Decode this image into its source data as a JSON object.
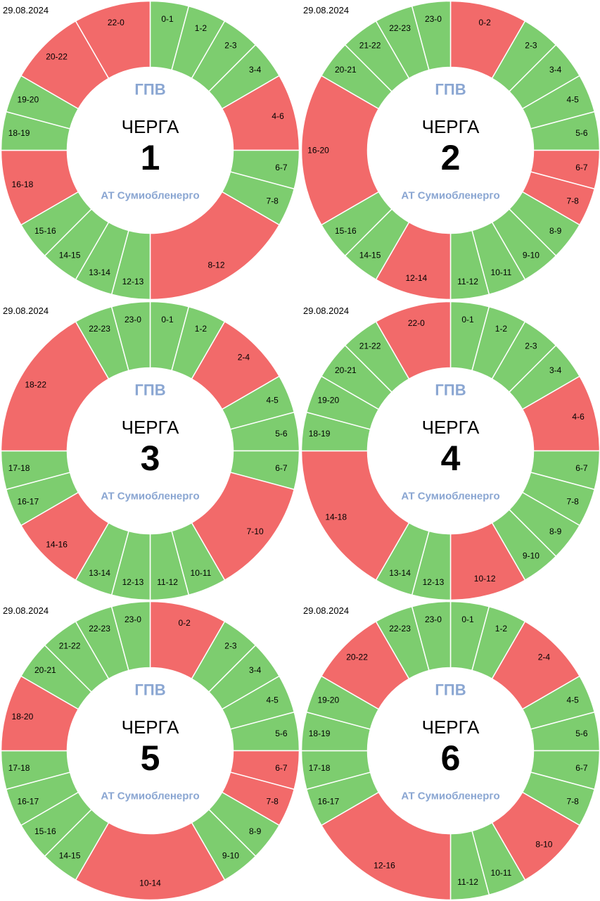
{
  "colors": {
    "on": "#7dcd6f",
    "off": "#f26a6a",
    "center_text": "#8aa6d2"
  },
  "chart_data": [
    {
      "type": "pie",
      "date": "29.08.2024",
      "top_text": "ГПВ",
      "title": "ЧЕРГА",
      "number": "1",
      "bottom_text": "АТ Сумиобленерго",
      "segments": [
        {
          "label": "0-1",
          "start": 0,
          "end": 1,
          "status": "on"
        },
        {
          "label": "1-2",
          "start": 1,
          "end": 2,
          "status": "on"
        },
        {
          "label": "2-3",
          "start": 2,
          "end": 3,
          "status": "on"
        },
        {
          "label": "3-4",
          "start": 3,
          "end": 4,
          "status": "on"
        },
        {
          "label": "4-6",
          "start": 4,
          "end": 6,
          "status": "off"
        },
        {
          "label": "6-7",
          "start": 6,
          "end": 7,
          "status": "on"
        },
        {
          "label": "7-8",
          "start": 7,
          "end": 8,
          "status": "on"
        },
        {
          "label": "8-12",
          "start": 8,
          "end": 12,
          "status": "off"
        },
        {
          "label": "12-13",
          "start": 12,
          "end": 13,
          "status": "on"
        },
        {
          "label": "13-14",
          "start": 13,
          "end": 14,
          "status": "on"
        },
        {
          "label": "14-15",
          "start": 14,
          "end": 15,
          "status": "on"
        },
        {
          "label": "15-16",
          "start": 15,
          "end": 16,
          "status": "on"
        },
        {
          "label": "16-18",
          "start": 16,
          "end": 18,
          "status": "off"
        },
        {
          "label": "18-19",
          "start": 18,
          "end": 19,
          "status": "on"
        },
        {
          "label": "19-20",
          "start": 19,
          "end": 20,
          "status": "on"
        },
        {
          "label": "20-22",
          "start": 20,
          "end": 22,
          "status": "off"
        },
        {
          "label": "22-0",
          "start": 22,
          "end": 24,
          "status": "off"
        }
      ]
    },
    {
      "type": "pie",
      "date": "29.08.2024",
      "top_text": "ГПВ",
      "title": "ЧЕРГА",
      "number": "2",
      "bottom_text": "АТ Сумиобленерго",
      "segments": [
        {
          "label": "0-2",
          "start": 0,
          "end": 2,
          "status": "off"
        },
        {
          "label": "2-3",
          "start": 2,
          "end": 3,
          "status": "on"
        },
        {
          "label": "3-4",
          "start": 3,
          "end": 4,
          "status": "on"
        },
        {
          "label": "4-5",
          "start": 4,
          "end": 5,
          "status": "on"
        },
        {
          "label": "5-6",
          "start": 5,
          "end": 6,
          "status": "on"
        },
        {
          "label": "6-7",
          "start": 6,
          "end": 7,
          "status": "off"
        },
        {
          "label": "7-8",
          "start": 7,
          "end": 8,
          "status": "off"
        },
        {
          "label": "8-9",
          "start": 8,
          "end": 9,
          "status": "on"
        },
        {
          "label": "9-10",
          "start": 9,
          "end": 10,
          "status": "on"
        },
        {
          "label": "10-11",
          "start": 10,
          "end": 11,
          "status": "on"
        },
        {
          "label": "11-12",
          "start": 11,
          "end": 12,
          "status": "on"
        },
        {
          "label": "12-14",
          "start": 12,
          "end": 14,
          "status": "off"
        },
        {
          "label": "14-15",
          "start": 14,
          "end": 15,
          "status": "on"
        },
        {
          "label": "15-16",
          "start": 15,
          "end": 16,
          "status": "on"
        },
        {
          "label": "16-20",
          "start": 16,
          "end": 20,
          "status": "off"
        },
        {
          "label": "20-21",
          "start": 20,
          "end": 21,
          "status": "on"
        },
        {
          "label": "21-22",
          "start": 21,
          "end": 22,
          "status": "on"
        },
        {
          "label": "22-23",
          "start": 22,
          "end": 23,
          "status": "on"
        },
        {
          "label": "23-0",
          "start": 23,
          "end": 24,
          "status": "on"
        }
      ]
    },
    {
      "type": "pie",
      "date": "29.08.2024",
      "top_text": "ГПВ",
      "title": "ЧЕРГА",
      "number": "3",
      "bottom_text": "АТ Сумиобленерго",
      "segments": [
        {
          "label": "0-1",
          "start": 0,
          "end": 1,
          "status": "on"
        },
        {
          "label": "1-2",
          "start": 1,
          "end": 2,
          "status": "on"
        },
        {
          "label": "2-4",
          "start": 2,
          "end": 4,
          "status": "off"
        },
        {
          "label": "4-5",
          "start": 4,
          "end": 5,
          "status": "on"
        },
        {
          "label": "5-6",
          "start": 5,
          "end": 6,
          "status": "on"
        },
        {
          "label": "6-7",
          "start": 6,
          "end": 7,
          "status": "on"
        },
        {
          "label": "7-10",
          "start": 7,
          "end": 10,
          "status": "off"
        },
        {
          "label": "10-11",
          "start": 10,
          "end": 11,
          "status": "on"
        },
        {
          "label": "11-12",
          "start": 11,
          "end": 12,
          "status": "on"
        },
        {
          "label": "12-13",
          "start": 12,
          "end": 13,
          "status": "on"
        },
        {
          "label": "13-14",
          "start": 13,
          "end": 14,
          "status": "on"
        },
        {
          "label": "14-16",
          "start": 14,
          "end": 16,
          "status": "off"
        },
        {
          "label": "16-17",
          "start": 16,
          "end": 17,
          "status": "on"
        },
        {
          "label": "17-18",
          "start": 17,
          "end": 18,
          "status": "on"
        },
        {
          "label": "18-22",
          "start": 18,
          "end": 22,
          "status": "off"
        },
        {
          "label": "22-23",
          "start": 22,
          "end": 23,
          "status": "on"
        },
        {
          "label": "23-0",
          "start": 23,
          "end": 24,
          "status": "on"
        }
      ]
    },
    {
      "type": "pie",
      "date": "29.08.2024",
      "top_text": "ГПВ",
      "title": "ЧЕРГА",
      "number": "4",
      "bottom_text": "АТ Сумиобленерго",
      "segments": [
        {
          "label": "0-1",
          "start": 0,
          "end": 1,
          "status": "on"
        },
        {
          "label": "1-2",
          "start": 1,
          "end": 2,
          "status": "on"
        },
        {
          "label": "2-3",
          "start": 2,
          "end": 3,
          "status": "on"
        },
        {
          "label": "3-4",
          "start": 3,
          "end": 4,
          "status": "on"
        },
        {
          "label": "4-6",
          "start": 4,
          "end": 6,
          "status": "off"
        },
        {
          "label": "6-7",
          "start": 6,
          "end": 7,
          "status": "on"
        },
        {
          "label": "7-8",
          "start": 7,
          "end": 8,
          "status": "on"
        },
        {
          "label": "8-9",
          "start": 8,
          "end": 9,
          "status": "on"
        },
        {
          "label": "9-10",
          "start": 9,
          "end": 10,
          "status": "on"
        },
        {
          "label": "10-12",
          "start": 10,
          "end": 12,
          "status": "off"
        },
        {
          "label": "12-13",
          "start": 12,
          "end": 13,
          "status": "on"
        },
        {
          "label": "13-14",
          "start": 13,
          "end": 14,
          "status": "on"
        },
        {
          "label": "14-18",
          "start": 14,
          "end": 18,
          "status": "off"
        },
        {
          "label": "18-19",
          "start": 18,
          "end": 19,
          "status": "on"
        },
        {
          "label": "19-20",
          "start": 19,
          "end": 20,
          "status": "on"
        },
        {
          "label": "20-21",
          "start": 20,
          "end": 21,
          "status": "on"
        },
        {
          "label": "21-22",
          "start": 21,
          "end": 22,
          "status": "on"
        },
        {
          "label": "22-0",
          "start": 22,
          "end": 24,
          "status": "off"
        }
      ]
    },
    {
      "type": "pie",
      "date": "29.08.2024",
      "top_text": "ГПВ",
      "title": "ЧЕРГА",
      "number": "5",
      "bottom_text": "АТ Сумиобленерго",
      "segments": [
        {
          "label": "0-2",
          "start": 0,
          "end": 2,
          "status": "off"
        },
        {
          "label": "2-3",
          "start": 2,
          "end": 3,
          "status": "on"
        },
        {
          "label": "3-4",
          "start": 3,
          "end": 4,
          "status": "on"
        },
        {
          "label": "4-5",
          "start": 4,
          "end": 5,
          "status": "on"
        },
        {
          "label": "5-6",
          "start": 5,
          "end": 6,
          "status": "on"
        },
        {
          "label": "6-7",
          "start": 6,
          "end": 7,
          "status": "off"
        },
        {
          "label": "7-8",
          "start": 7,
          "end": 8,
          "status": "off"
        },
        {
          "label": "8-9",
          "start": 8,
          "end": 9,
          "status": "on"
        },
        {
          "label": "9-10",
          "start": 9,
          "end": 10,
          "status": "on"
        },
        {
          "label": "10-14",
          "start": 10,
          "end": 14,
          "status": "off"
        },
        {
          "label": "14-15",
          "start": 14,
          "end": 15,
          "status": "on"
        },
        {
          "label": "15-16",
          "start": 15,
          "end": 16,
          "status": "on"
        },
        {
          "label": "16-17",
          "start": 16,
          "end": 17,
          "status": "on"
        },
        {
          "label": "17-18",
          "start": 17,
          "end": 18,
          "status": "on"
        },
        {
          "label": "18-20",
          "start": 18,
          "end": 20,
          "status": "off"
        },
        {
          "label": "20-21",
          "start": 20,
          "end": 21,
          "status": "on"
        },
        {
          "label": "21-22",
          "start": 21,
          "end": 22,
          "status": "on"
        },
        {
          "label": "22-23",
          "start": 22,
          "end": 23,
          "status": "on"
        },
        {
          "label": "23-0",
          "start": 23,
          "end": 24,
          "status": "on"
        }
      ]
    },
    {
      "type": "pie",
      "date": "29.08.2024",
      "top_text": "ГПВ",
      "title": "ЧЕРГА",
      "number": "6",
      "bottom_text": "АТ Сумиобленерго",
      "segments": [
        {
          "label": "0-1",
          "start": 0,
          "end": 1,
          "status": "on"
        },
        {
          "label": "1-2",
          "start": 1,
          "end": 2,
          "status": "on"
        },
        {
          "label": "2-4",
          "start": 2,
          "end": 4,
          "status": "off"
        },
        {
          "label": "4-5",
          "start": 4,
          "end": 5,
          "status": "on"
        },
        {
          "label": "5-6",
          "start": 5,
          "end": 6,
          "status": "on"
        },
        {
          "label": "6-7",
          "start": 6,
          "end": 7,
          "status": "on"
        },
        {
          "label": "7-8",
          "start": 7,
          "end": 8,
          "status": "on"
        },
        {
          "label": "8-10",
          "start": 8,
          "end": 10,
          "status": "off"
        },
        {
          "label": "10-11",
          "start": 10,
          "end": 11,
          "status": "on"
        },
        {
          "label": "11-12",
          "start": 11,
          "end": 12,
          "status": "on"
        },
        {
          "label": "12-16",
          "start": 12,
          "end": 16,
          "status": "off"
        },
        {
          "label": "16-17",
          "start": 16,
          "end": 17,
          "status": "on"
        },
        {
          "label": "17-18",
          "start": 17,
          "end": 18,
          "status": "on"
        },
        {
          "label": "18-19",
          "start": 18,
          "end": 19,
          "status": "on"
        },
        {
          "label": "19-20",
          "start": 19,
          "end": 20,
          "status": "on"
        },
        {
          "label": "20-22",
          "start": 20,
          "end": 22,
          "status": "off"
        },
        {
          "label": "22-23",
          "start": 22,
          "end": 23,
          "status": "on"
        },
        {
          "label": "23-0",
          "start": 23,
          "end": 24,
          "status": "on"
        }
      ]
    }
  ]
}
